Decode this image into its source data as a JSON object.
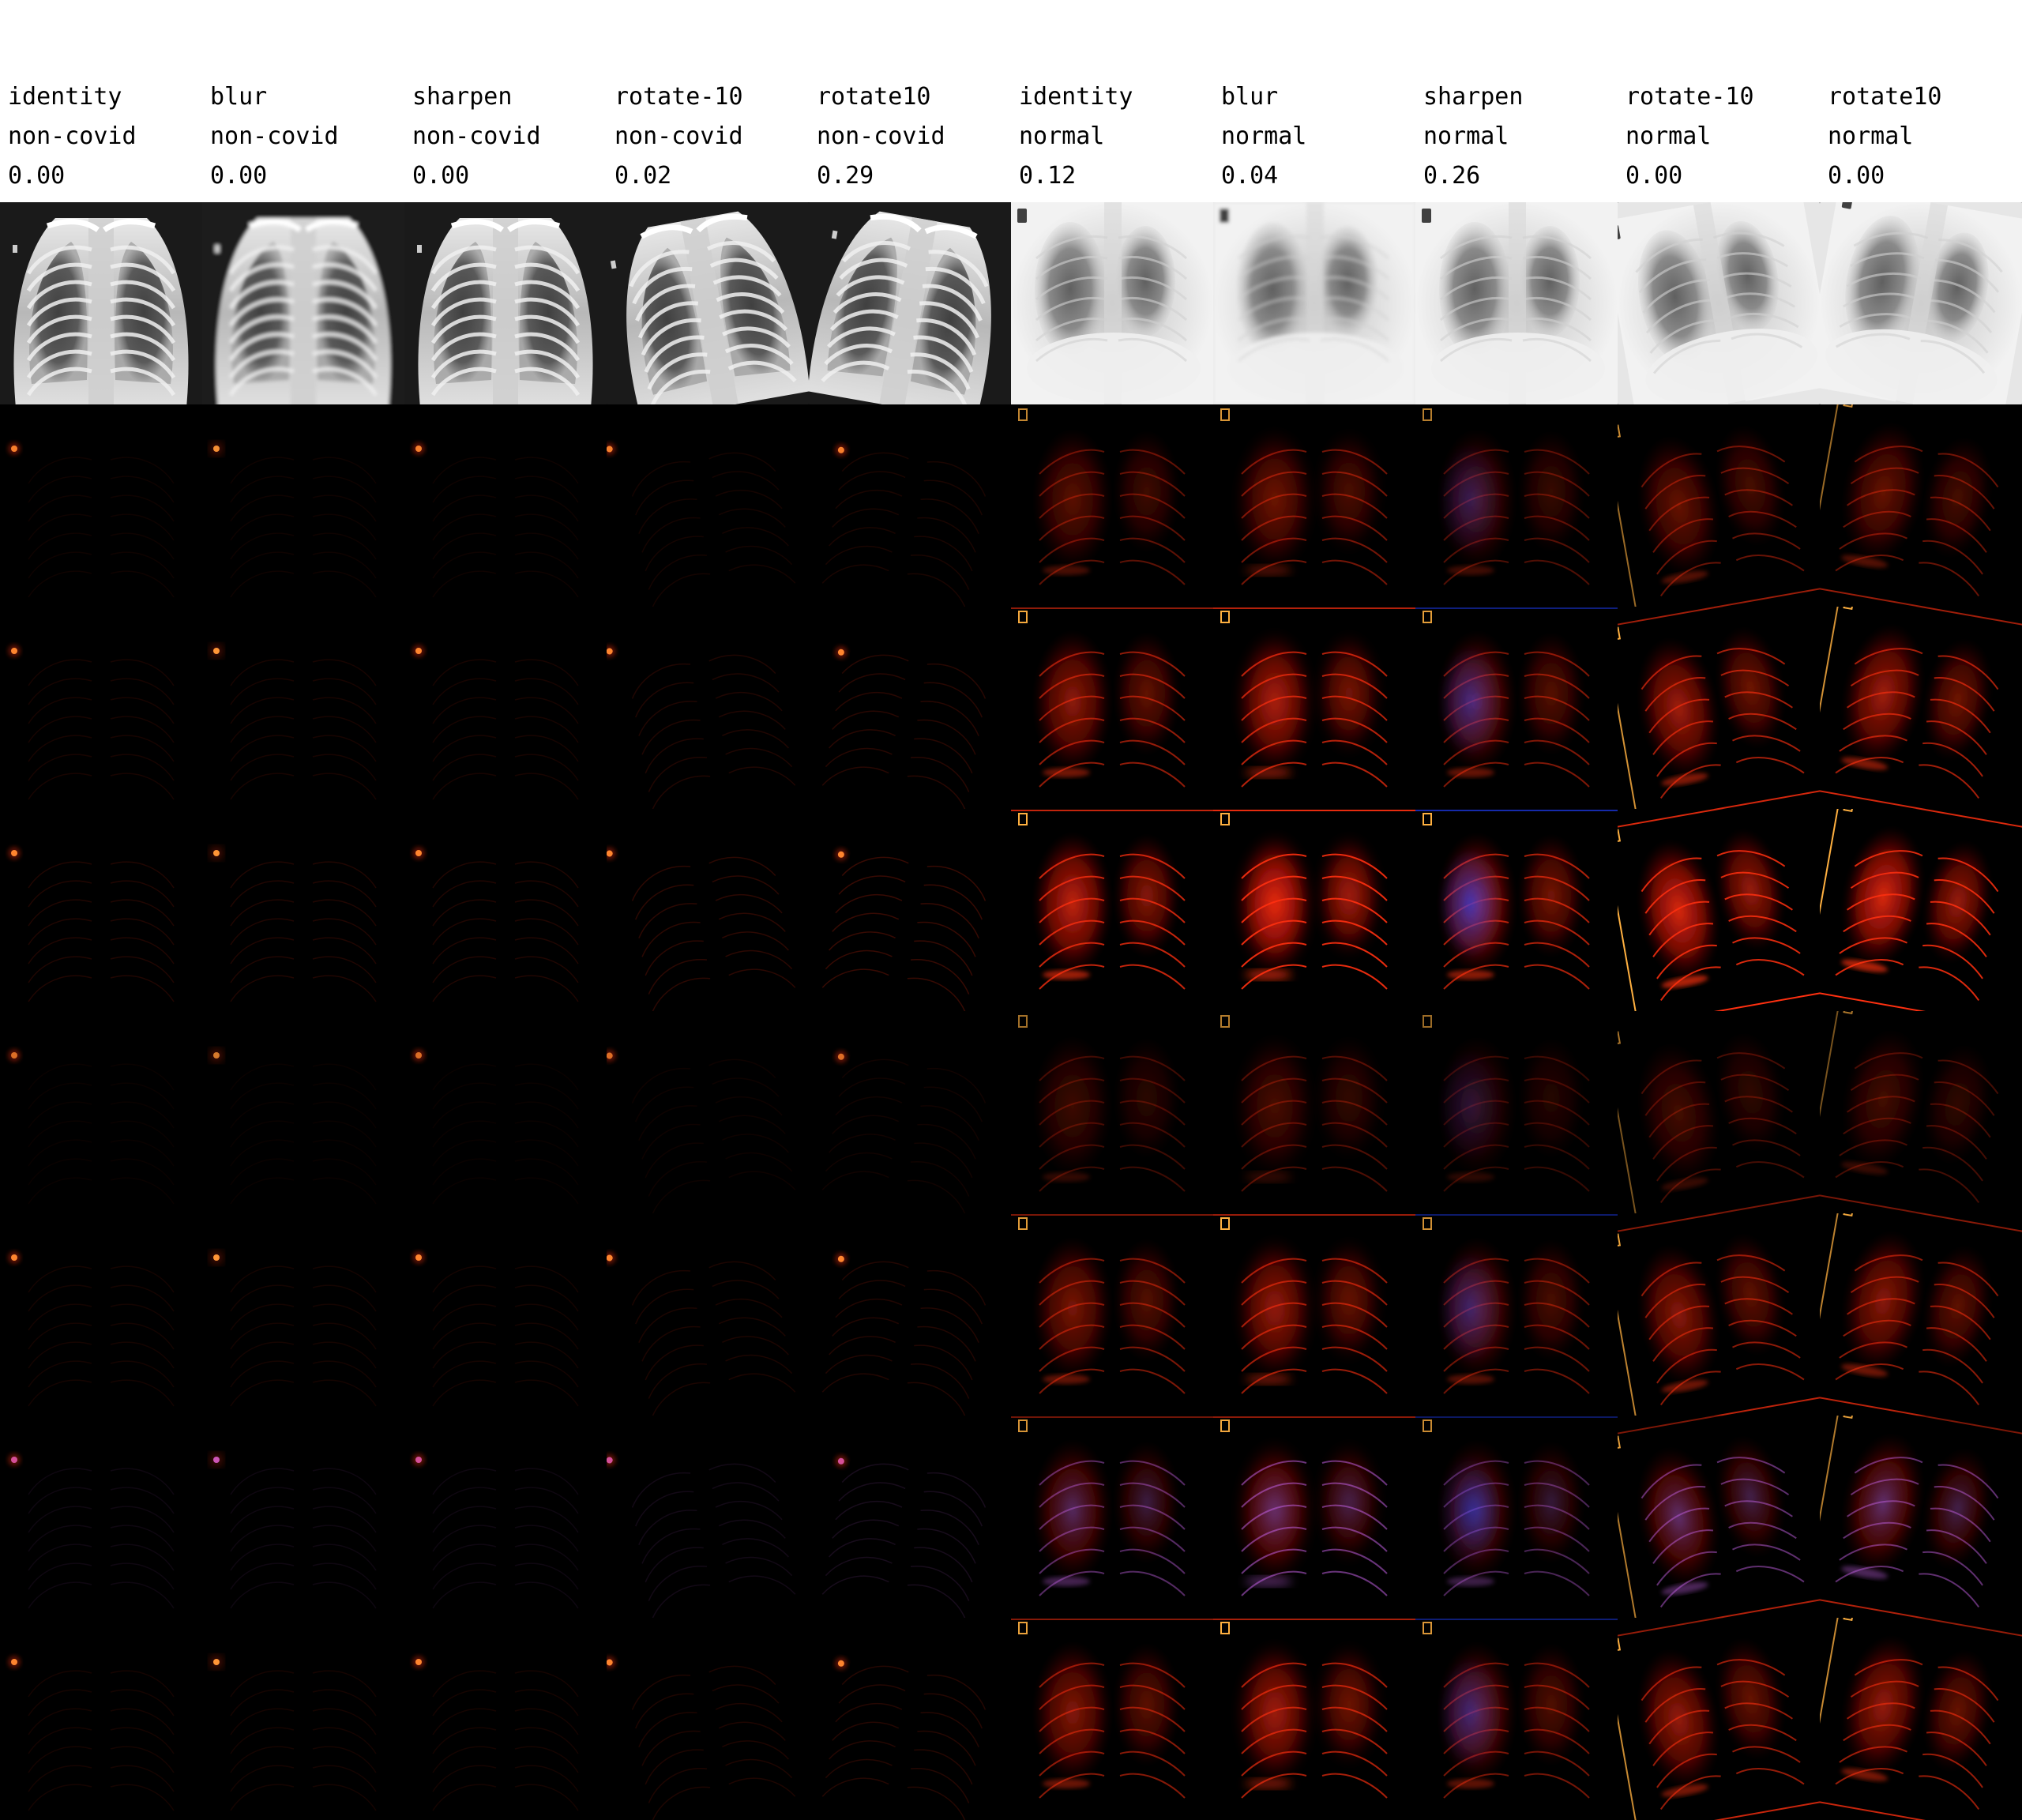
{
  "columns": [
    {
      "augmentation": "identity",
      "label": "non-covid",
      "score": "0.00",
      "tone": "pediatric",
      "angle": 0,
      "effect": "none",
      "saliency_strength": 0.15
    },
    {
      "augmentation": "blur",
      "label": "non-covid",
      "score": "0.00",
      "tone": "pediatric",
      "angle": 0,
      "effect": "blur",
      "saliency_strength": 0.15
    },
    {
      "augmentation": "sharpen",
      "label": "non-covid",
      "score": "0.00",
      "tone": "pediatric",
      "angle": 0,
      "effect": "sharpen",
      "saliency_strength": 0.15
    },
    {
      "augmentation": "rotate-10",
      "label": "non-covid",
      "score": "0.02",
      "tone": "pediatric",
      "angle": -10,
      "effect": "none",
      "saliency_strength": 0.2
    },
    {
      "augmentation": "rotate10",
      "label": "non-covid",
      "score": "0.29",
      "tone": "pediatric",
      "angle": 10,
      "effect": "none",
      "saliency_strength": 0.25
    },
    {
      "augmentation": "identity",
      "label": "normal",
      "score": "0.12",
      "tone": "adult",
      "angle": 0,
      "effect": "none",
      "saliency_strength": 0.8
    },
    {
      "augmentation": "blur",
      "label": "normal",
      "score": "0.04",
      "tone": "adult",
      "angle": 0,
      "effect": "blur",
      "saliency_strength": 1.0
    },
    {
      "augmentation": "sharpen",
      "label": "normal",
      "score": "0.26",
      "tone": "adult",
      "angle": 0,
      "effect": "sharpen",
      "saliency_strength": 0.7
    },
    {
      "augmentation": "rotate-10",
      "label": "normal",
      "score": "0.00",
      "tone": "adult",
      "angle": -10,
      "effect": "none",
      "saliency_strength": 0.9
    },
    {
      "augmentation": "rotate10",
      "label": "normal",
      "score": "0.00",
      "tone": "adult",
      "angle": 10,
      "effect": "none",
      "saliency_strength": 0.9
    }
  ],
  "rows": [
    {
      "kind": "xray"
    },
    {
      "kind": "saliency",
      "palette": "hot",
      "intensity": 0.45
    },
    {
      "kind": "saliency",
      "palette": "hot",
      "intensity": 0.7
    },
    {
      "kind": "saliency",
      "palette": "hot",
      "intensity": 0.95
    },
    {
      "kind": "saliency",
      "palette": "hot",
      "intensity": 0.3
    },
    {
      "kind": "saliency",
      "palette": "hot",
      "intensity": 0.6
    },
    {
      "kind": "saliency",
      "palette": "purple",
      "intensity": 0.55
    },
    {
      "kind": "saliency",
      "palette": "hot",
      "intensity": 0.65
    }
  ],
  "colors": {
    "background": "#ffffff",
    "grid_background": "#000000",
    "text": "#000000",
    "hot_strong": "#ff3010",
    "hot_mid": "#c01008",
    "hot_weak": "#600404",
    "blue": "#2040ff",
    "purple": "#c060e0",
    "marker_hot": "#ffb040"
  }
}
